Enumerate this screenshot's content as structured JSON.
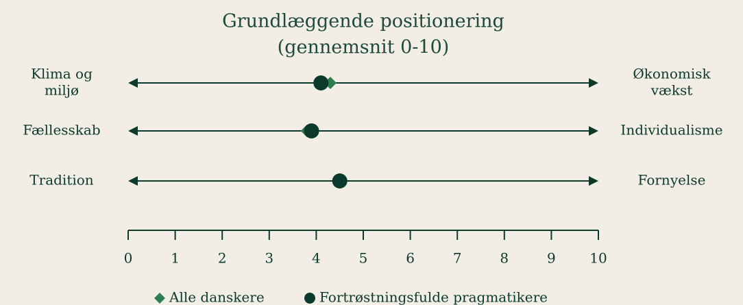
{
  "chart_data": {
    "type": "dot",
    "title": "Grundlæggende positionering",
    "subtitle": "(gennemsnit 0-10)",
    "left_labels": [
      [
        "Klima og",
        "miljø"
      ],
      [
        "Fællesskab"
      ],
      [
        "Tradition"
      ]
    ],
    "right_labels": [
      [
        "Økonomisk",
        "vækst"
      ],
      [
        "Individualisme"
      ],
      [
        "Fornyelse"
      ]
    ],
    "series": [
      {
        "name": "Alle danskere",
        "color": "#2e7d4f",
        "marker": "diamond",
        "values": [
          4.3,
          3.8,
          4.5
        ]
      },
      {
        "name": "Fortrøstningsfulde pragmatikere",
        "color": "#0b3a2c",
        "marker": "circle",
        "values": [
          4.1,
          3.9,
          4.5
        ]
      }
    ],
    "xlim": [
      0,
      10
    ],
    "xticks": [
      0,
      1,
      2,
      3,
      4,
      5,
      6,
      7,
      8,
      9,
      10
    ],
    "line_color": "#0b3a2c"
  }
}
